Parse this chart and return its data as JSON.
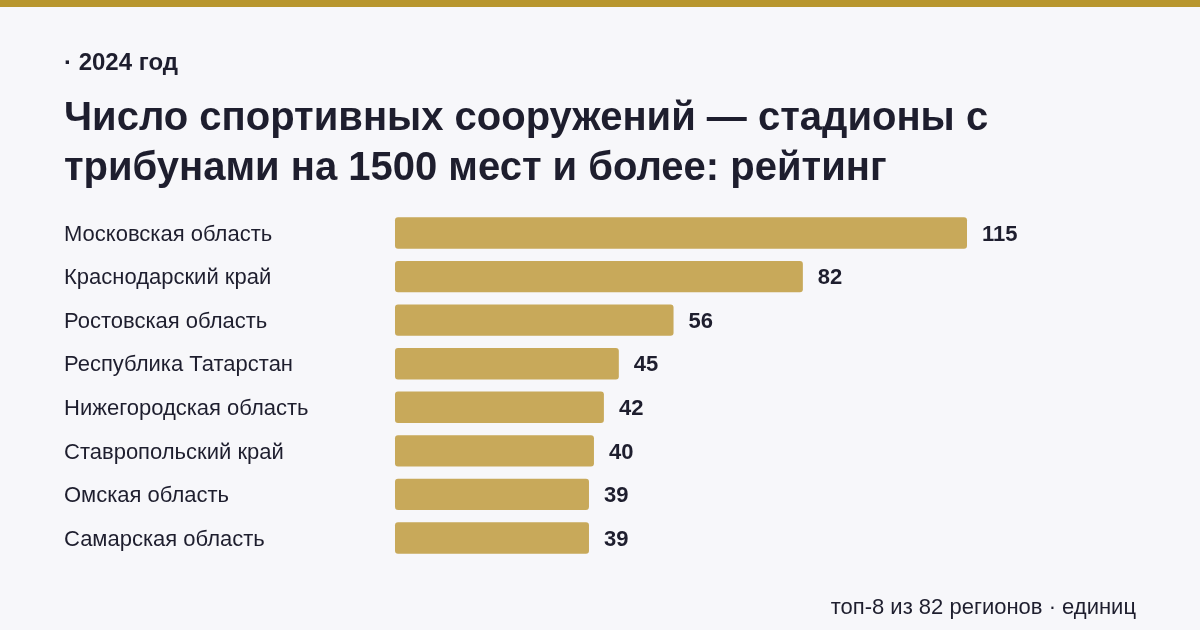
{
  "chart_data": {
    "type": "bar",
    "orientation": "horizontal",
    "title": "Число спортивных сооружений — стадионы с трибунами на 1500 мест и более: рейтинг",
    "subtitle": "· 2024 год",
    "categories": [
      "Московская область",
      "Краснодарский край",
      "Ростовская область",
      "Республика Татарстан",
      "Нижегородская область",
      "Ставропольский край",
      "Омская область",
      "Самарская область"
    ],
    "values": [
      115,
      82,
      56,
      45,
      42,
      40,
      39,
      39
    ],
    "color": "#c8a95a",
    "data_labels": true,
    "annotations": [
      "топ-8 из 82 регионов · единиц"
    ]
  }
}
